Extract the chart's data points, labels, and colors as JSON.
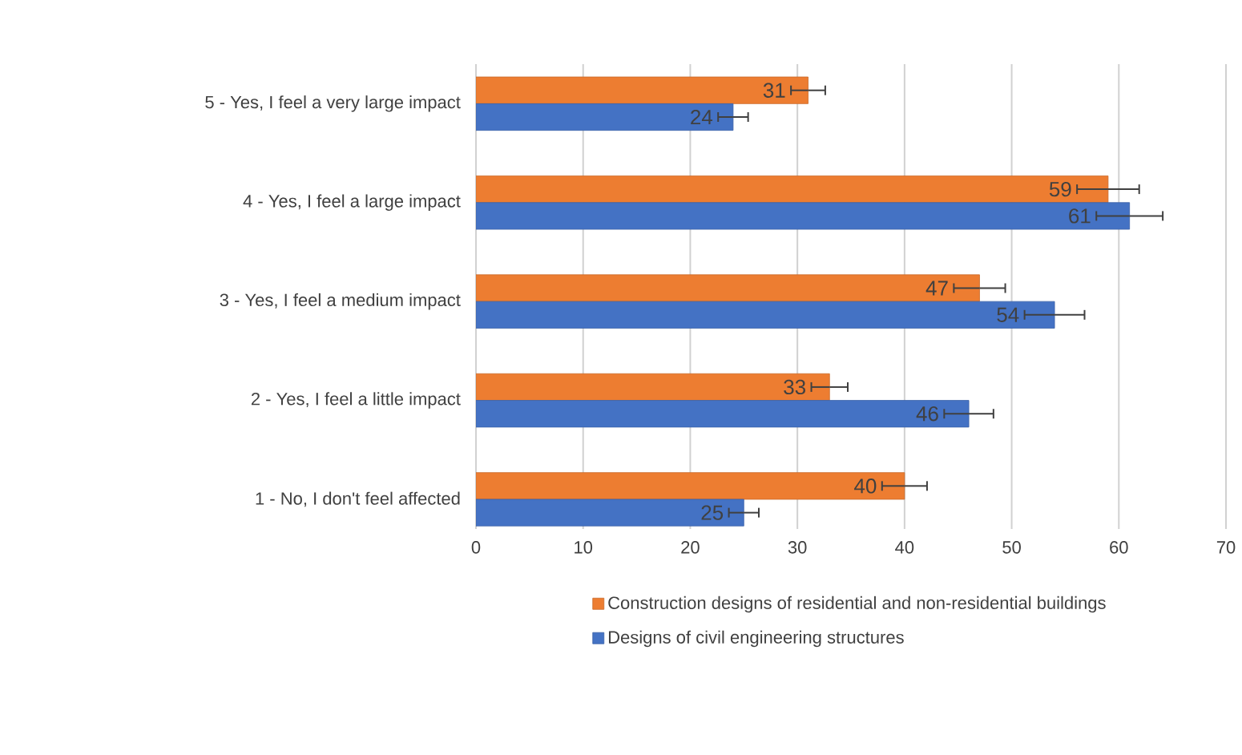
{
  "chart_data": {
    "type": "bar",
    "orientation": "horizontal",
    "categories": [
      "5 - Yes, I feel a very large impact",
      "4 - Yes, I feel a large impact",
      "3 - Yes, I feel a medium impact",
      "2 - Yes, I feel a little impact",
      "1 - No, I don't feel affected"
    ],
    "series": [
      {
        "name": "Construction designs of residential and non-residential buildings",
        "color": "#ed7d31",
        "values": [
          31,
          59,
          47,
          33,
          40
        ],
        "errors": [
          1.6,
          2.9,
          2.4,
          1.7,
          2.1
        ]
      },
      {
        "name": "Designs of civil engineering structures",
        "color": "#4472c4",
        "values": [
          24,
          61,
          54,
          46,
          25
        ],
        "errors": [
          1.4,
          3.1,
          2.8,
          2.3,
          1.4
        ]
      }
    ],
    "xlim": [
      0,
      70
    ],
    "xticks": [
      0,
      10,
      20,
      30,
      40,
      50,
      60,
      70
    ],
    "grid": "x",
    "legend": "bottom",
    "data_labels": true
  }
}
